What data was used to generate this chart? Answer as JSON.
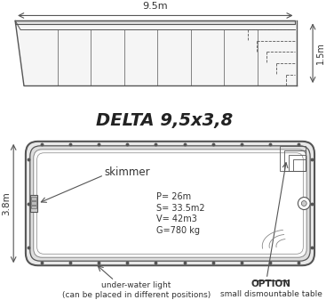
{
  "title": "DELTA 9,5x3,8",
  "bg_color": "#ffffff",
  "line_color": "#555555",
  "light_line": "#888888",
  "text_color": "#333333",
  "side_view_label_top": "9.5m",
  "side_view_label_right": "1.5m",
  "top_view_label_left": "3.8m",
  "skimmer_label": "skimmer",
  "stats_line1": "P= 26m",
  "stats_line2": "S= 33.5m2",
  "stats_line3": "V= 42m3",
  "stats_line4": "G=780 kg",
  "uwl_label1": "under-water light",
  "uwl_label2": "(can be placed in different positions)",
  "option_label1": "OPTION",
  "option_label2": "small dismountable table"
}
